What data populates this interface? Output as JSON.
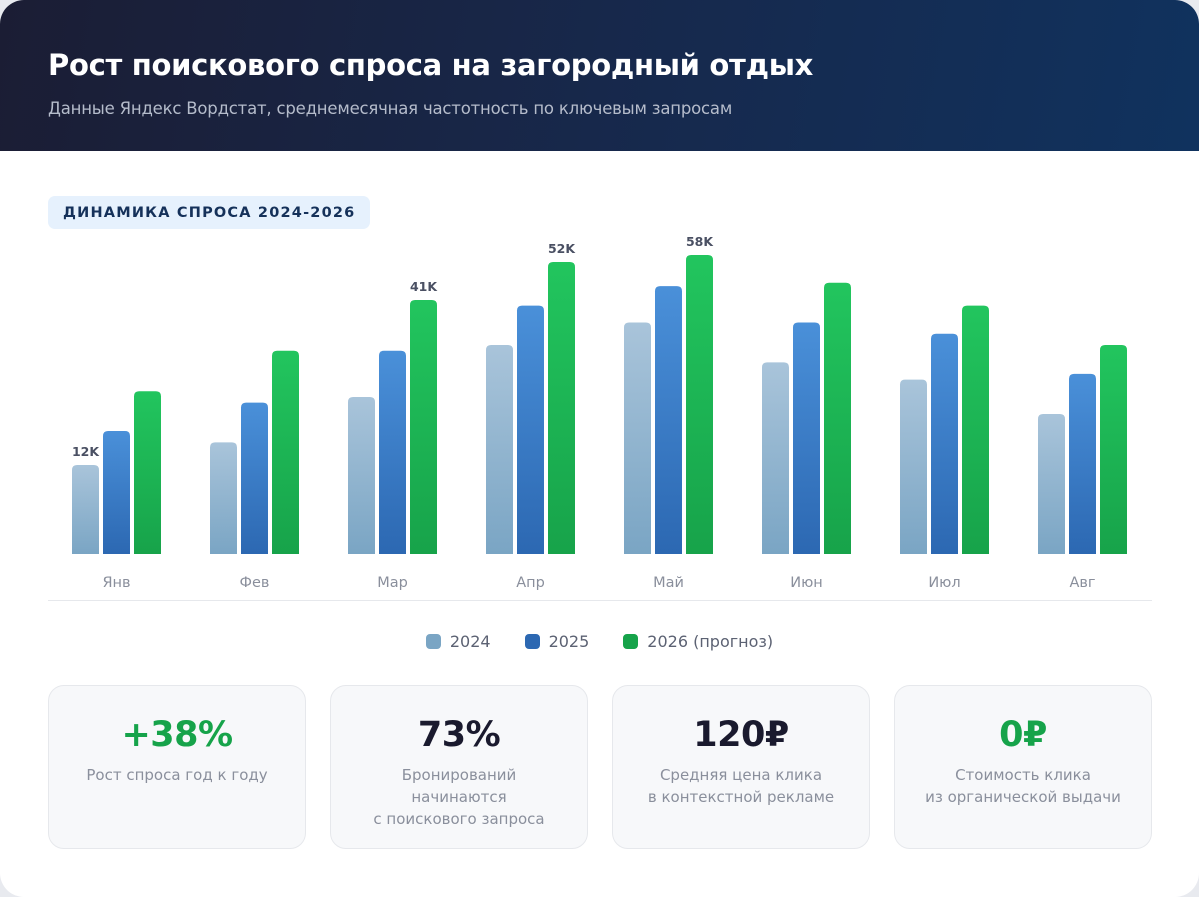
{
  "header": {
    "title": "Рост поискового спроса на загородный отдых",
    "subtitle": "Данные Яндекс Вордстат, среднемесячная частотность по ключевым запросам"
  },
  "section": {
    "badge": "ДИНАМИКА СПРОСА 2024-2026"
  },
  "colors": {
    "header_start": "#1b1d34",
    "header_end": "#10325e",
    "series_2024_top": "#a9c4da",
    "series_2024_bottom": "#7aa5c4",
    "series_2025_top": "#4a90d9",
    "series_2025_bottom": "#2c68b2",
    "series_2026_top": "#22c55e",
    "series_2026_bottom": "#17a34a",
    "accent_green": "#16a34a",
    "dark_text": "#1a1a2e"
  },
  "chart_data": {
    "type": "bar",
    "title": "ДИНАМИКА СПРОСА 2024-2026",
    "xlabel": "",
    "ylabel": "Среднемесячная частотность",
    "unit": "K",
    "grid": false,
    "legend_position": "bottom-center",
    "categories": [
      "Янв",
      "Фев",
      "Мар",
      "Апр",
      "Май",
      "Июн",
      "Июл",
      "Авг"
    ],
    "series": [
      {
        "name": "2024",
        "values": [
          12,
          16,
          24,
          33,
          37,
          30,
          27,
          21
        ]
      },
      {
        "name": "2025",
        "values": [
          18,
          23,
          32,
          40,
          45,
          37,
          35,
          28
        ]
      },
      {
        "name": "2026 (прогноз)",
        "values": [
          25,
          32,
          41,
          52,
          58,
          46,
          40,
          33
        ]
      }
    ],
    "data_labels": [
      {
        "series": 0,
        "category": "Янв",
        "text": "12K"
      },
      {
        "series": 2,
        "category": "Мар",
        "text": "41K"
      },
      {
        "series": 2,
        "category": "Апр",
        "text": "52K"
      },
      {
        "series": 2,
        "category": "Май",
        "text": "58K"
      }
    ]
  },
  "legend": [
    {
      "label": "2024",
      "color": "#7aa5c4"
    },
    {
      "label": "2025",
      "color": "#2c68b2"
    },
    {
      "label": "2026 (прогноз)",
      "color": "#16a34a"
    }
  ],
  "stats": [
    {
      "value": "+38%",
      "description": "Рост спроса год к году",
      "color": "#16a34a"
    },
    {
      "value": "73%",
      "description": "Бронирований\nначинаются\nс поискового запроса",
      "color": "#1a1a2e"
    },
    {
      "value": "120₽",
      "description": "Средняя цена клика\nв контекстной рекламе",
      "color": "#1a1a2e"
    },
    {
      "value": "0₽",
      "description": "Стоимость клика\nиз органической выдачи",
      "color": "#16a34a"
    }
  ]
}
